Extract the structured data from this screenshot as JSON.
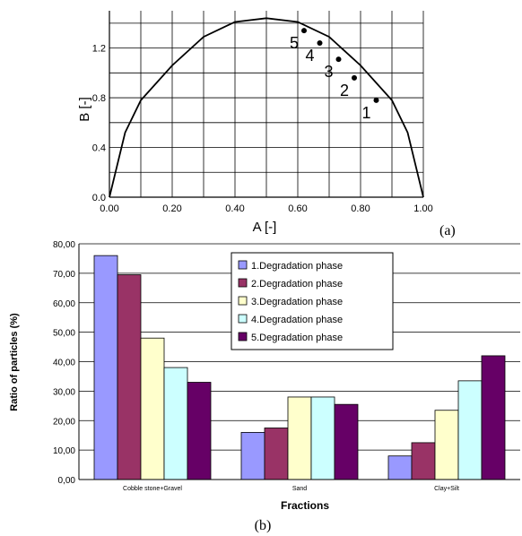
{
  "chart_data": [
    {
      "type": "line",
      "panel_label": "(a)",
      "xlabel": "A [-]",
      "ylabel": "B [-]",
      "xlim": [
        0,
        1
      ],
      "ylim": [
        0,
        1.5
      ],
      "x_ticks": [
        0,
        0.1,
        0.2,
        0.3,
        0.4,
        0.5,
        0.6,
        0.7,
        0.8,
        0.9,
        1.0
      ],
      "x_tick_labels": [
        "0.00",
        "",
        "0.20",
        "",
        "0.40",
        "",
        "0.60",
        "",
        "0.80",
        "",
        "1.00"
      ],
      "y_ticks": [
        0,
        0.2,
        0.4,
        0.6,
        0.8,
        1.0,
        1.2,
        1.4
      ],
      "y_tick_labels": [
        "0.0",
        "",
        "0.4",
        "",
        "0.8",
        "",
        "1.2",
        ""
      ],
      "grid": true,
      "curve": {
        "x": [
          0,
          0.05,
          0.1,
          0.2,
          0.3,
          0.4,
          0.5,
          0.6,
          0.7,
          0.8,
          0.9,
          0.95,
          1.0
        ],
        "y": [
          0,
          0.52,
          0.78,
          1.06,
          1.29,
          1.41,
          1.44,
          1.41,
          1.29,
          1.06,
          0.78,
          0.52,
          0
        ]
      },
      "points": [
        {
          "label": "1",
          "x": 0.85,
          "y": 0.78
        },
        {
          "label": "2",
          "x": 0.78,
          "y": 0.96
        },
        {
          "label": "3",
          "x": 0.73,
          "y": 1.11
        },
        {
          "label": "4",
          "x": 0.67,
          "y": 1.24
        },
        {
          "label": "5",
          "x": 0.62,
          "y": 1.34
        }
      ]
    },
    {
      "type": "bar",
      "panel_label": "(b)",
      "xlabel": "Fractions",
      "ylabel": "Ratio of particles (%)",
      "ylim": [
        0,
        80
      ],
      "y_ticks": [
        0,
        10,
        20,
        30,
        40,
        50,
        60,
        70,
        80
      ],
      "y_tick_labels": [
        "0,00",
        "10,00",
        "20,00",
        "30,00",
        "40,00",
        "50,00",
        "60,00",
        "70,00",
        "80,00"
      ],
      "grid": true,
      "legend_position": "top-center",
      "categories": [
        "Cobble stone+Gravel",
        "Sand",
        "Clay+Silt"
      ],
      "series": [
        {
          "name": "1.Degradation phase",
          "color": "#9999ff",
          "values": [
            76,
            16,
            8
          ]
        },
        {
          "name": "2.Degradation phase",
          "color": "#993366",
          "values": [
            69.5,
            17.5,
            12.5
          ]
        },
        {
          "name": "3.Degradation phase",
          "color": "#ffffcc",
          "values": [
            48,
            28,
            23.5
          ]
        },
        {
          "name": "4.Degradation phase",
          "color": "#ccffff",
          "values": [
            38,
            28,
            33.5
          ]
        },
        {
          "name": "5.Degradation phase",
          "color": "#660066",
          "values": [
            33,
            25.5,
            42
          ]
        }
      ]
    }
  ]
}
